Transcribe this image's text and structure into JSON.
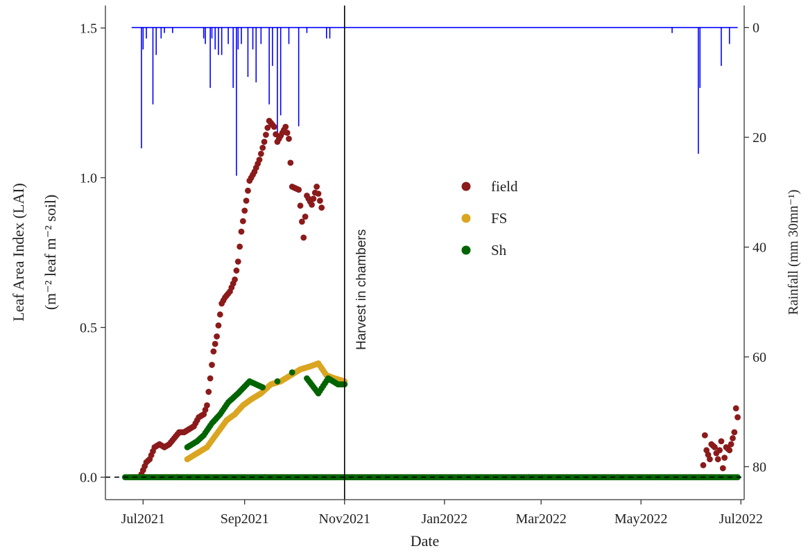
{
  "chart_data": {
    "type": "scatter",
    "title": "",
    "xlabel": "Date",
    "ylabel_line1": "Leaf Area Index (LAI)",
    "ylabel_line2": "(m⁻² leaf m⁻² soil)",
    "y2label": "Rainfall (mm 30mn⁻¹)",
    "xlim": [
      "2021-06-08",
      "2022-07-03"
    ],
    "ylim": [
      -0.075,
      1.575
    ],
    "y2lim": [
      -4,
      86
    ],
    "y2_reversed": true,
    "x_ticks": [
      {
        "date": "2021-07-01",
        "label": "Jul2021"
      },
      {
        "date": "2021-09-01",
        "label": "Sep2021"
      },
      {
        "date": "2021-11-01",
        "label": "Nov2021"
      },
      {
        "date": "2022-01-01",
        "label": "Jan2022"
      },
      {
        "date": "2022-03-01",
        "label": "Mar2022"
      },
      {
        "date": "2022-05-01",
        "label": "May2022"
      },
      {
        "date": "2022-07-01",
        "label": "Jul2022"
      }
    ],
    "y_ticks": [
      {
        "value": 0.0,
        "label": "0.0"
      },
      {
        "value": 0.5,
        "label": "0.5"
      },
      {
        "value": 1.0,
        "label": "1.0"
      },
      {
        "value": 1.5,
        "label": "1.5"
      }
    ],
    "y2_ticks": [
      {
        "value": 0,
        "label": "0"
      },
      {
        "value": 20,
        "label": "20"
      },
      {
        "value": 40,
        "label": "40"
      },
      {
        "value": 60,
        "label": "60"
      },
      {
        "value": 80,
        "label": "80"
      }
    ],
    "reference_line": {
      "y": 0,
      "style": "dashed"
    },
    "vertical_line": {
      "date": "2021-11-01",
      "label": "Harvest in chambers"
    },
    "legend": {
      "position": "center",
      "entries": [
        {
          "name": "field",
          "color": "#8b1a1a"
        },
        {
          "name": "FS",
          "color": "#daa520"
        },
        {
          "name": "Sh",
          "color": "#006400"
        }
      ]
    },
    "series": [
      {
        "name": "field",
        "color": "#8b1a1a",
        "points": [
          [
            "2021-06-25",
            0
          ],
          [
            "2021-06-30",
            0.01
          ],
          [
            "2021-07-03",
            0.05
          ],
          [
            "2021-07-05",
            0.06
          ],
          [
            "2021-07-08",
            0.1
          ],
          [
            "2021-07-11",
            0.11
          ],
          [
            "2021-07-14",
            0.1
          ],
          [
            "2021-07-17",
            0.11
          ],
          [
            "2021-07-20",
            0.13
          ],
          [
            "2021-07-23",
            0.15
          ],
          [
            "2021-07-26",
            0.15
          ],
          [
            "2021-07-29",
            0.16
          ],
          [
            "2021-08-01",
            0.17
          ],
          [
            "2021-08-04",
            0.2
          ],
          [
            "2021-08-07",
            0.21
          ],
          [
            "2021-08-09",
            0.24
          ],
          [
            "2021-08-11",
            0.33
          ],
          [
            "2021-08-13",
            0.42
          ],
          [
            "2021-08-15",
            0.47
          ],
          [
            "2021-08-18",
            0.58
          ],
          [
            "2021-08-20",
            0.6
          ],
          [
            "2021-08-23",
            0.62
          ],
          [
            "2021-08-26",
            0.66
          ],
          [
            "2021-08-28",
            0.72
          ],
          [
            "2021-08-30",
            0.82
          ],
          [
            "2021-09-01",
            0.89
          ],
          [
            "2021-09-04",
            0.99
          ],
          [
            "2021-09-07",
            1.02
          ],
          [
            "2021-09-10",
            1.06
          ],
          [
            "2021-09-13",
            1.12
          ],
          [
            "2021-09-16",
            1.19
          ],
          [
            "2021-09-19",
            1.17
          ],
          [
            "2021-09-21",
            1.12
          ],
          [
            "2021-09-23",
            1.14
          ],
          [
            "2021-09-26",
            1.17
          ],
          [
            "2021-09-28",
            1.13
          ],
          [
            "2021-09-30",
            0.97
          ],
          [
            "2021-10-04",
            0.96
          ],
          [
            "2021-10-07",
            0.8
          ],
          [
            "2021-10-09",
            0.94
          ],
          [
            "2021-10-12",
            0.91
          ],
          [
            "2021-10-15",
            0.97
          ],
          [
            "2021-10-18",
            0.9
          ],
          [
            "2021-10-17",
            0
          ],
          [
            "2021-10-25",
            0
          ],
          [
            "2021-11-01",
            0
          ],
          [
            "2022-05-20",
            0
          ],
          [
            "2022-06-08",
            0
          ],
          [
            "2022-06-18",
            0
          ],
          [
            "2022-06-08",
            0.04
          ],
          [
            "2022-06-09",
            0.14
          ],
          [
            "2022-06-10",
            0.09
          ],
          [
            "2022-06-12",
            0.06
          ],
          [
            "2022-06-13",
            0.11
          ],
          [
            "2022-06-15",
            0.1
          ],
          [
            "2022-06-17",
            0.06
          ],
          [
            "2022-06-19",
            0.12
          ],
          [
            "2022-06-20",
            0.03
          ],
          [
            "2022-06-22",
            0.1
          ],
          [
            "2022-06-24",
            0.09
          ],
          [
            "2022-06-25",
            0.11
          ],
          [
            "2022-06-27",
            0.15
          ],
          [
            "2022-06-28",
            0.23
          ],
          [
            "2022-06-29",
            0.2
          ]
        ]
      },
      {
        "name": "FS",
        "color": "#daa520",
        "points": [
          [
            "2021-06-25",
            0
          ],
          [
            "2021-07-10",
            0
          ],
          [
            "2021-07-25",
            0
          ],
          [
            "2021-07-28",
            0.06
          ],
          [
            "2021-07-31",
            0.07
          ],
          [
            "2021-08-03",
            0.08
          ],
          [
            "2021-08-06",
            0.09
          ],
          [
            "2021-08-09",
            0.1
          ],
          [
            "2021-08-13",
            0.13
          ],
          [
            "2021-08-17",
            0.16
          ],
          [
            "2021-08-21",
            0.19
          ],
          [
            "2021-08-26",
            0.21
          ],
          [
            "2021-08-31",
            0.24
          ],
          [
            "2021-09-05",
            0.26
          ],
          [
            "2021-09-11",
            0.28
          ],
          [
            "2021-09-17",
            0.31
          ],
          [
            "2021-09-23",
            0.32
          ],
          [
            "2021-09-29",
            0.34
          ],
          [
            "2021-10-05",
            0.36
          ],
          [
            "2021-10-11",
            0.37
          ],
          [
            "2021-10-16",
            0.38
          ],
          [
            "2021-10-21",
            0.34
          ],
          [
            "2021-10-26",
            0.33
          ],
          [
            "2021-11-01",
            0.32
          ]
        ]
      },
      {
        "name": "Sh",
        "color": "#006400",
        "points": [
          [
            "2021-06-20",
            0
          ],
          [
            "2021-07-05",
            0
          ],
          [
            "2021-07-25",
            0
          ],
          [
            "2021-07-28",
            0.1
          ],
          [
            "2021-07-31",
            0.11
          ],
          [
            "2021-08-03",
            0.12
          ],
          [
            "2021-08-07",
            0.14
          ],
          [
            "2021-08-12",
            0.18
          ],
          [
            "2021-08-17",
            0.21
          ],
          [
            "2021-08-22",
            0.25
          ],
          [
            "2021-08-28",
            0.28
          ],
          [
            "2021-09-04",
            0.32
          ],
          [
            "2021-09-12",
            0.3
          ],
          [
            "2021-09-21",
            0.32
          ],
          [
            "2021-09-30",
            0.35
          ],
          [
            "2021-10-09",
            0.33
          ],
          [
            "2021-10-16",
            0.28
          ],
          [
            "2021-10-22",
            0.33
          ],
          [
            "2021-10-28",
            0.31
          ],
          [
            "2021-11-01",
            0.31
          ],
          [
            "2021-11-15",
            0
          ],
          [
            "2022-01-01",
            0
          ],
          [
            "2022-03-01",
            0
          ],
          [
            "2022-05-01",
            0
          ],
          [
            "2022-06-29",
            0
          ]
        ]
      }
    ],
    "rainfall": {
      "name": "Rainfall",
      "color": "#0000ff",
      "points": [
        [
          "2021-06-30",
          22
        ],
        [
          "2021-07-01",
          4
        ],
        [
          "2021-07-03",
          2
        ],
        [
          "2021-07-07",
          14
        ],
        [
          "2021-07-09",
          5
        ],
        [
          "2021-07-12",
          2
        ],
        [
          "2021-07-14",
          1
        ],
        [
          "2021-07-19",
          1
        ],
        [
          "2021-08-07",
          2
        ],
        [
          "2021-08-08",
          3
        ],
        [
          "2021-08-11",
          11
        ],
        [
          "2021-08-12",
          2
        ],
        [
          "2021-08-14",
          4
        ],
        [
          "2021-08-16",
          5
        ],
        [
          "2021-08-18",
          5
        ],
        [
          "2021-08-22",
          3
        ],
        [
          "2021-08-25",
          11
        ],
        [
          "2021-08-27",
          27
        ],
        [
          "2021-08-28",
          4
        ],
        [
          "2021-08-30",
          3
        ],
        [
          "2021-09-03",
          9
        ],
        [
          "2021-09-06",
          4
        ],
        [
          "2021-09-08",
          10
        ],
        [
          "2021-09-11",
          3
        ],
        [
          "2021-09-16",
          14
        ],
        [
          "2021-09-18",
          7
        ],
        [
          "2021-09-21",
          20
        ],
        [
          "2021-09-23",
          16
        ],
        [
          "2021-09-28",
          3
        ],
        [
          "2021-10-04",
          18
        ],
        [
          "2021-10-09",
          1
        ],
        [
          "2021-10-21",
          2
        ],
        [
          "2021-10-23",
          2
        ],
        [
          "2022-05-20",
          1
        ],
        [
          "2022-06-05",
          23
        ],
        [
          "2022-06-06",
          11
        ],
        [
          "2022-06-19",
          7
        ],
        [
          "2022-06-24",
          3
        ]
      ]
    }
  }
}
